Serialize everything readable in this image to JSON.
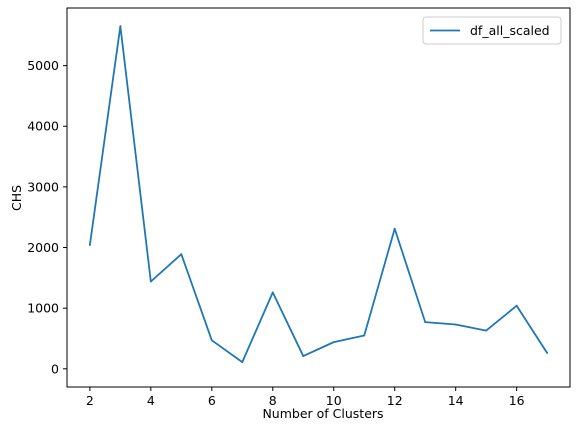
{
  "chart_data": {
    "type": "line",
    "title": "",
    "xlabel": "Number of Clusters",
    "ylabel": "CHS",
    "xlim": [
      1.25,
      17.75
    ],
    "ylim": [
      -300,
      5950
    ],
    "xticks": [
      2,
      4,
      6,
      8,
      10,
      12,
      14,
      16
    ],
    "yticks": [
      0,
      1000,
      2000,
      3000,
      4000,
      5000
    ],
    "legend_position": "upper right",
    "grid": false,
    "series": [
      {
        "name": "df_all_scaled",
        "color": "#1f77b4",
        "x": [
          2,
          3,
          4,
          5,
          6,
          7,
          8,
          9,
          10,
          11,
          12,
          13,
          14,
          15,
          16,
          17
        ],
        "y": [
          2040,
          5650,
          1440,
          1890,
          470,
          110,
          1260,
          210,
          440,
          550,
          2310,
          770,
          730,
          630,
          1040,
          260
        ]
      }
    ]
  }
}
